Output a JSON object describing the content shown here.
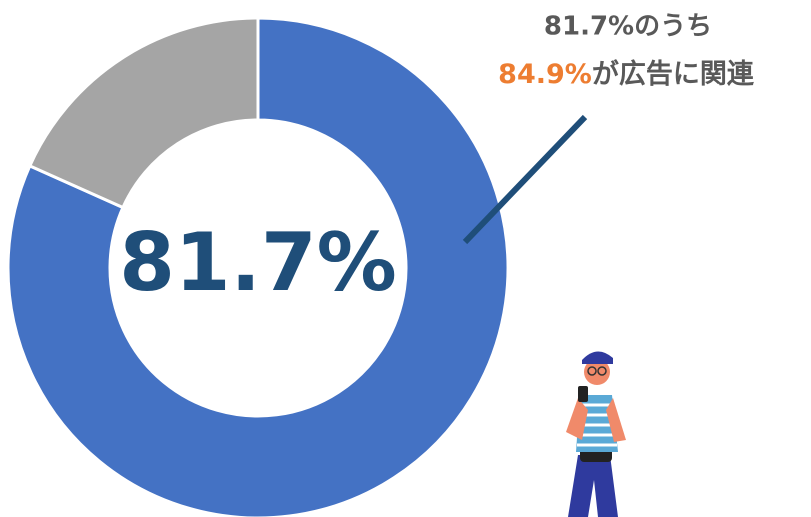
{
  "chart_data": {
    "type": "pie",
    "values": [
      81.7,
      18.3
    ],
    "value_labels": [
      "81.7%",
      null
    ],
    "colors": [
      "#4472c4",
      "#a5a5a5"
    ],
    "annotation": {
      "line1": "81.7%のうち",
      "highlight": "84.9%",
      "rest": "が広告に関連"
    }
  }
}
